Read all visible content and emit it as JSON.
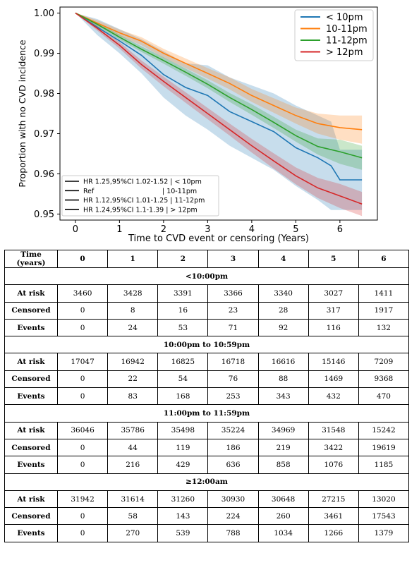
{
  "chart_data": {
    "type": "line",
    "xlabel": "Time to CVD event or censoring (Years)",
    "ylabel": "Proportion with no CVD incidence",
    "xlim": [
      -0.35,
      6.85
    ],
    "ylim": [
      0.9485,
      1.0015
    ],
    "xticks": [
      "0",
      "1",
      "2",
      "3",
      "4",
      "5",
      "6"
    ],
    "yticks": [
      "0.95",
      "0.96",
      "0.97",
      "0.98",
      "0.99",
      "1.00"
    ],
    "xtick_values": [
      0,
      1,
      2,
      3,
      4,
      5,
      6
    ],
    "ytick_values": [
      0.95,
      0.96,
      0.97,
      0.98,
      0.99,
      1.0
    ],
    "legend_position": "top-right",
    "series": [
      {
        "name": "< 10pm",
        "color": "#1f77b4",
        "x": [
          0,
          0.5,
          1,
          1.5,
          2,
          2.5,
          3,
          3.5,
          4,
          4.5,
          5,
          5.5,
          5.8,
          6,
          6.5
        ],
        "y": [
          1.0,
          0.9965,
          0.9931,
          0.9895,
          0.9847,
          0.9815,
          0.9795,
          0.9755,
          0.973,
          0.9705,
          0.9665,
          0.964,
          0.962,
          0.9585,
          0.9585
        ],
        "lower": [
          1.0,
          0.9945,
          0.99,
          0.985,
          0.979,
          0.9745,
          0.971,
          0.967,
          0.964,
          0.961,
          0.957,
          0.9535,
          0.951,
          0.951,
          0.951
        ],
        "upper": [
          1.0,
          0.9985,
          0.996,
          0.9935,
          0.9905,
          0.9875,
          0.987,
          0.984,
          0.982,
          0.98,
          0.977,
          0.9745,
          0.973,
          0.966,
          0.966
        ]
      },
      {
        "name": "10-11pm",
        "color": "#ff7f0e",
        "x": [
          0,
          0.5,
          1,
          1.5,
          2,
          2.5,
          3,
          3.5,
          4,
          4.5,
          5,
          5.5,
          6,
          6.5
        ],
        "y": [
          1.0,
          0.9975,
          0.9951,
          0.993,
          0.99,
          0.9875,
          0.985,
          0.9825,
          0.9795,
          0.977,
          0.9745,
          0.9725,
          0.9715,
          0.971
        ],
        "lower": [
          1.0,
          0.9968,
          0.9943,
          0.992,
          0.9889,
          0.9863,
          0.9837,
          0.981,
          0.9779,
          0.9752,
          0.9725,
          0.97,
          0.9685,
          0.9675
        ],
        "upper": [
          1.0,
          0.9982,
          0.9959,
          0.994,
          0.9911,
          0.9887,
          0.9863,
          0.984,
          0.9811,
          0.9788,
          0.9765,
          0.975,
          0.9745,
          0.9745
        ]
      },
      {
        "name": "11-12pm",
        "color": "#2ca02c",
        "x": [
          0,
          0.5,
          1,
          1.5,
          2,
          2.5,
          3,
          3.5,
          4,
          4.5,
          5,
          5.5,
          6,
          6.5
        ],
        "y": [
          1.0,
          0.9972,
          0.994,
          0.991,
          0.9882,
          0.9853,
          0.9823,
          0.979,
          0.976,
          0.9728,
          0.9695,
          0.9668,
          0.9655,
          0.964
        ],
        "lower": [
          1.0,
          0.9967,
          0.9934,
          0.9903,
          0.9874,
          0.9844,
          0.9813,
          0.9779,
          0.9747,
          0.9714,
          0.968,
          0.9648,
          0.9625,
          0.961
        ],
        "upper": [
          1.0,
          0.9977,
          0.9946,
          0.9917,
          0.989,
          0.9862,
          0.9833,
          0.9801,
          0.9773,
          0.9742,
          0.971,
          0.9688,
          0.9685,
          0.967
        ]
      },
      {
        "name": "> 12pm",
        "color": "#d62728",
        "x": [
          0,
          0.5,
          1,
          1.5,
          2,
          2.5,
          3,
          3.5,
          4,
          4.5,
          5,
          5.5,
          6,
          6.5
        ],
        "y": [
          1.0,
          0.9962,
          0.992,
          0.9872,
          0.983,
          0.979,
          0.975,
          0.971,
          0.967,
          0.9632,
          0.9595,
          0.9565,
          0.9545,
          0.9525
        ],
        "lower": [
          1.0,
          0.9956,
          0.9912,
          0.9862,
          0.9818,
          0.9777,
          0.9736,
          0.9695,
          0.9653,
          0.9613,
          0.9574,
          0.954,
          0.9515,
          0.9495
        ],
        "upper": [
          1.0,
          0.9968,
          0.9928,
          0.9882,
          0.9842,
          0.9803,
          0.9764,
          0.9725,
          0.9687,
          0.9651,
          0.9616,
          0.959,
          0.9575,
          0.9555
        ]
      }
    ],
    "hr_legend": [
      {
        "label": "HR 1.25,95%CI 1.02-1.52 | < 10pm"
      },
      {
        "label": "Ref                                | 10-11pm"
      },
      {
        "label": "HR 1.12,95%CI 1.01-1.25 | 11-12pm"
      },
      {
        "label": "HR 1.24,95%CI 1.1-1.39 | > 12pm"
      }
    ]
  },
  "table": {
    "header": [
      "Time (years)",
      "0",
      "1",
      "2",
      "3",
      "4",
      "5",
      "6"
    ],
    "groups": [
      {
        "title": "<10:00pm",
        "rows": [
          {
            "label": "At risk",
            "values": [
              "3460",
              "3428",
              "3391",
              "3366",
              "3340",
              "3027",
              "1411"
            ]
          },
          {
            "label": "Censored",
            "values": [
              "0",
              "8",
              "16",
              "23",
              "28",
              "317",
              "1917"
            ]
          },
          {
            "label": "Events",
            "values": [
              "0",
              "24",
              "53",
              "71",
              "92",
              "116",
              "132"
            ]
          }
        ]
      },
      {
        "title": "10:00pm to 10:59pm",
        "rows": [
          {
            "label": "At risk",
            "values": [
              "17047",
              "16942",
              "16825",
              "16718",
              "16616",
              "15146",
              "7209"
            ]
          },
          {
            "label": "Censored",
            "values": [
              "0",
              "22",
              "54",
              "76",
              "88",
              "1469",
              "9368"
            ]
          },
          {
            "label": "Events",
            "values": [
              "0",
              "83",
              "168",
              "253",
              "343",
              "432",
              "470"
            ]
          }
        ]
      },
      {
        "title": "11:00pm to 11:59pm",
        "rows": [
          {
            "label": "At risk",
            "values": [
              "36046",
              "35786",
              "35498",
              "35224",
              "34969",
              "31548",
              "15242"
            ]
          },
          {
            "label": "Censored",
            "values": [
              "0",
              "44",
              "119",
              "186",
              "219",
              "3422",
              "19619"
            ]
          },
          {
            "label": "Events",
            "values": [
              "0",
              "216",
              "429",
              "636",
              "858",
              "1076",
              "1185"
            ]
          }
        ]
      },
      {
        "title": "≥12:00am",
        "rows": [
          {
            "label": "At risk",
            "values": [
              "31942",
              "31614",
              "31260",
              "30930",
              "30648",
              "27215",
              "13020"
            ]
          },
          {
            "label": "Censored",
            "values": [
              "0",
              "58",
              "143",
              "224",
              "260",
              "3461",
              "17543"
            ]
          },
          {
            "label": "Events",
            "values": [
              "0",
              "270",
              "539",
              "788",
              "1034",
              "1266",
              "1379"
            ]
          }
        ]
      }
    ]
  }
}
